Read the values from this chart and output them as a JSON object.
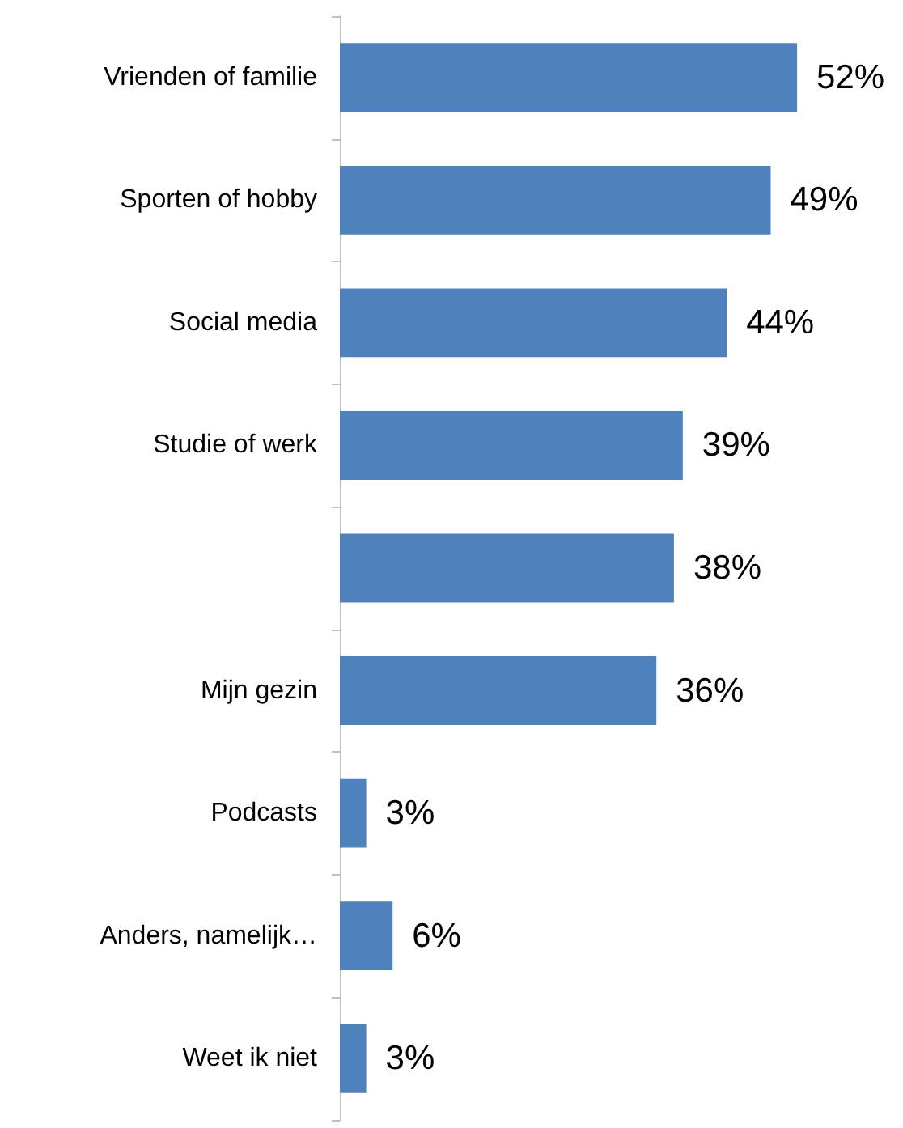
{
  "chart_data": {
    "type": "bar",
    "orientation": "horizontal",
    "categories": [
      "Vrienden of familie",
      "Sporten of hobby",
      "Social media",
      "Studie of werk",
      null,
      "Mijn gezin",
      "Podcasts",
      "Anders, namelijk…",
      "Weet ik niet"
    ],
    "values": [
      52,
      49,
      44,
      39,
      38,
      36,
      3,
      6,
      3
    ],
    "value_labels": [
      "52%",
      "49%",
      "44%",
      "39%",
      "38%",
      "36%",
      "3%",
      "6%",
      "3%"
    ],
    "color": "#4f81bd"
  }
}
